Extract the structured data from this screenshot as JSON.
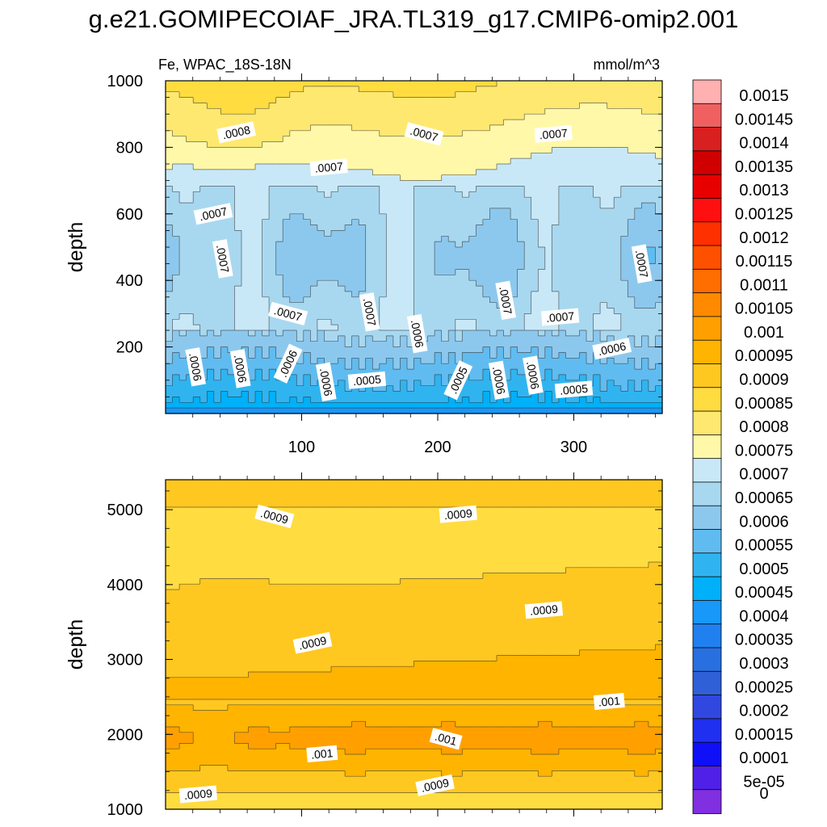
{
  "title": "g.e21.GOMIPECOIAF_JRA.TL319_g17.CMIP6-omip2.001",
  "chart_data": [
    {
      "type": "heatmap",
      "panel": "upper",
      "left_label": "Fe, WPAC_18S-18N",
      "right_label": "mmol/m^3",
      "ylabel": "depth",
      "xlabel": "",
      "xlim": [
        0,
        365
      ],
      "ylim": [
        1000,
        0
      ],
      "xticks": [
        100,
        200,
        300
      ],
      "yticks": [
        200,
        400,
        600,
        800,
        1000
      ],
      "contour_labels": [
        {
          "text": ".0006",
          "x": 22,
          "y": 140
        },
        {
          "text": ".0006",
          "x": 55,
          "y": 135
        },
        {
          "text": ".0006",
          "x": 90,
          "y": 150
        },
        {
          "text": ".0006",
          "x": 118,
          "y": 95
        },
        {
          "text": ".0005",
          "x": 148,
          "y": 100
        },
        {
          "text": ".0005",
          "x": 215,
          "y": 100
        },
        {
          "text": ".0006",
          "x": 245,
          "y": 100
        },
        {
          "text": ".0006",
          "x": 270,
          "y": 115
        },
        {
          "text": ".0005",
          "x": 300,
          "y": 72
        },
        {
          "text": ".0006",
          "x": 328,
          "y": 195
        },
        {
          "text": ".0006",
          "x": 185,
          "y": 240
        },
        {
          "text": ".0007",
          "x": 90,
          "y": 300
        },
        {
          "text": ".0007",
          "x": 150,
          "y": 305
        },
        {
          "text": ".0007",
          "x": 250,
          "y": 340
        },
        {
          "text": ".0007",
          "x": 290,
          "y": 290
        },
        {
          "text": ".0007",
          "x": 350,
          "y": 450
        },
        {
          "text": ".0007",
          "x": 42,
          "y": 465
        },
        {
          "text": ".0007",
          "x": 35,
          "y": 600
        },
        {
          "text": ".0007",
          "x": 120,
          "y": 740
        },
        {
          "text": ".0007",
          "x": 190,
          "y": 840
        },
        {
          "text": ".0007",
          "x": 285,
          "y": 840
        },
        {
          "text": ".0008",
          "x": 52,
          "y": 845
        }
      ]
    },
    {
      "type": "heatmap",
      "panel": "lower",
      "ylabel": "depth",
      "xlabel": "",
      "xlim": [
        0,
        365
      ],
      "ylim": [
        5400,
        1000
      ],
      "yticks": [
        1000,
        2000,
        3000,
        4000,
        5000
      ],
      "contour_labels": [
        {
          "text": ".0009",
          "x": 24,
          "y": 1200
        },
        {
          "text": ".0009",
          "x": 198,
          "y": 1320
        },
        {
          "text": ".001",
          "x": 115,
          "y": 1740
        },
        {
          "text": ".001",
          "x": 206,
          "y": 1940
        },
        {
          "text": ".001",
          "x": 326,
          "y": 2440
        },
        {
          "text": ".0009",
          "x": 108,
          "y": 3220
        },
        {
          "text": ".0009",
          "x": 278,
          "y": 3660
        },
        {
          "text": ".0009",
          "x": 80,
          "y": 4910
        },
        {
          "text": ".0009",
          "x": 215,
          "y": 4940
        }
      ]
    }
  ],
  "colorbar": {
    "labels": [
      "0.0015",
      "0.00145",
      "0.0014",
      "0.00135",
      "0.0013",
      "0.00125",
      "0.0012",
      "0.00115",
      "0.0011",
      "0.00105",
      "0.001",
      "0.00095",
      "0.0009",
      "0.00085",
      "0.0008",
      "0.00075",
      "0.0007",
      "0.00065",
      "0.0006",
      "0.00055",
      "0.0005",
      "0.00045",
      "0.0004",
      "0.00035",
      "0.0003",
      "0.00025",
      "0.0002",
      "0.00015",
      "0.0001",
      "5e-05",
      "0"
    ],
    "colors": [
      "#ffb0b0",
      "#f06060",
      "#d82020",
      "#d00000",
      "#e80000",
      "#ff1010",
      "#ff3000",
      "#ff5000",
      "#ff6e00",
      "#ff8a00",
      "#ffa000",
      "#ffb400",
      "#ffc820",
      "#ffdc40",
      "#ffe870",
      "#fff8a8",
      "#c8e8f8",
      "#a8d8f0",
      "#8cc8ee",
      "#60bcf0",
      "#30b4f0",
      "#00b0f8",
      "#1898f8",
      "#2080f0",
      "#2870e0",
      "#3060d8",
      "#3048e0",
      "#2030f0",
      "#1010f8",
      "#5020e8",
      "#8030e0"
    ]
  }
}
